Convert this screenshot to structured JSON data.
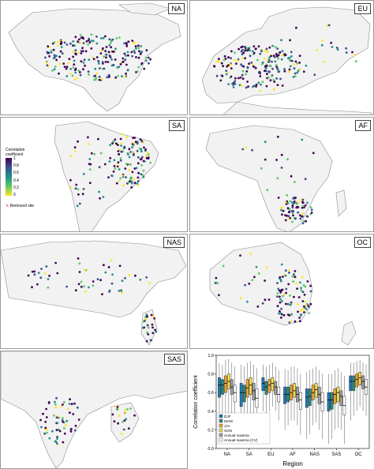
{
  "panels": {
    "na": "NA",
    "eu": "EU",
    "sa": "SA",
    "af": "AF",
    "nas": "NAS",
    "oc": "OC",
    "sas": "SAS"
  },
  "legend": {
    "title_line1": "Correlation",
    "title_line2": "coefficient",
    "ticks": [
      "1",
      "0.8",
      "0.6",
      "0.4",
      "0.2",
      "0"
    ],
    "removed_symbol": "✕",
    "removed_label": "Removed site"
  },
  "colors": {
    "scale": [
      "#440154",
      "#3b528b",
      "#21908c",
      "#5dc863",
      "#fde725"
    ],
    "removed": "#e41a1c",
    "land": "#f2f2f2",
    "border": "#8c8c8c"
  },
  "chart_data": {
    "type": "box",
    "categories": [
      "NA",
      "SA",
      "EU",
      "AF",
      "NAS",
      "SAS",
      "OC"
    ],
    "xlabel": "Region",
    "ylabel": "Correlation coefficient",
    "ylim": [
      0,
      1
    ],
    "yticks": [
      "0.0",
      "0.2",
      "0.4",
      "0.6",
      "0.8",
      "1.0"
    ],
    "legend_position": "bottom-left",
    "series": [
      {
        "name": "DJF",
        "color": "#1f77b4",
        "boxes": [
          [
            0.2,
            0.55,
            0.68,
            0.76,
            0.92
          ],
          [
            0.15,
            0.45,
            0.6,
            0.7,
            0.9
          ],
          [
            0.4,
            0.62,
            0.7,
            0.76,
            0.9
          ],
          [
            0.2,
            0.48,
            0.58,
            0.66,
            0.85
          ],
          [
            0.1,
            0.44,
            0.55,
            0.64,
            0.82
          ],
          [
            0.05,
            0.4,
            0.52,
            0.6,
            0.8
          ],
          [
            0.3,
            0.62,
            0.72,
            0.78,
            0.92
          ]
        ]
      },
      {
        "name": "MAM",
        "color": "#2a8a7b",
        "boxes": [
          [
            0.25,
            0.58,
            0.68,
            0.74,
            0.9
          ],
          [
            0.2,
            0.5,
            0.6,
            0.68,
            0.88
          ],
          [
            0.35,
            0.58,
            0.66,
            0.72,
            0.88
          ],
          [
            0.25,
            0.5,
            0.58,
            0.66,
            0.84
          ],
          [
            0.15,
            0.46,
            0.56,
            0.64,
            0.84
          ],
          [
            0.1,
            0.42,
            0.52,
            0.6,
            0.8
          ],
          [
            0.35,
            0.62,
            0.72,
            0.78,
            0.92
          ]
        ]
      },
      {
        "name": "JJA",
        "color": "#e8a33a",
        "boxes": [
          [
            0.3,
            0.6,
            0.7,
            0.78,
            0.95
          ],
          [
            0.25,
            0.55,
            0.65,
            0.74,
            0.92
          ],
          [
            0.4,
            0.6,
            0.68,
            0.74,
            0.9
          ],
          [
            0.3,
            0.52,
            0.6,
            0.68,
            0.88
          ],
          [
            0.25,
            0.52,
            0.6,
            0.68,
            0.86
          ],
          [
            0.2,
            0.48,
            0.58,
            0.64,
            0.84
          ],
          [
            0.4,
            0.66,
            0.74,
            0.8,
            0.94
          ]
        ]
      },
      {
        "name": "SON",
        "color": "#f6dc4b",
        "boxes": [
          [
            0.35,
            0.64,
            0.72,
            0.8,
            0.96
          ],
          [
            0.3,
            0.58,
            0.68,
            0.76,
            0.94
          ],
          [
            0.45,
            0.62,
            0.7,
            0.76,
            0.92
          ],
          [
            0.3,
            0.55,
            0.62,
            0.7,
            0.88
          ],
          [
            0.28,
            0.55,
            0.63,
            0.7,
            0.88
          ],
          [
            0.22,
            0.5,
            0.6,
            0.66,
            0.86
          ],
          [
            0.45,
            0.68,
            0.76,
            0.82,
            0.95
          ]
        ]
      },
      {
        "name": "Annual maxima",
        "color": "#9e9e9e",
        "boxes": [
          [
            0.3,
            0.58,
            0.66,
            0.74,
            0.92
          ],
          [
            0.25,
            0.52,
            0.62,
            0.7,
            0.9
          ],
          [
            0.4,
            0.58,
            0.66,
            0.72,
            0.88
          ],
          [
            0.25,
            0.5,
            0.58,
            0.66,
            0.86
          ],
          [
            0.2,
            0.48,
            0.58,
            0.66,
            0.84
          ],
          [
            0.2,
            0.46,
            0.56,
            0.62,
            0.82
          ],
          [
            0.4,
            0.64,
            0.72,
            0.78,
            0.92
          ]
        ]
      },
      {
        "name": "Annual maxima (CV)",
        "color": "#ffffff",
        "boxes": [
          [
            0.2,
            0.5,
            0.6,
            0.68,
            0.88
          ],
          [
            0.15,
            0.44,
            0.54,
            0.64,
            0.86
          ],
          [
            0.3,
            0.5,
            0.58,
            0.66,
            0.84
          ],
          [
            0.15,
            0.42,
            0.52,
            0.6,
            0.8
          ],
          [
            0.1,
            0.4,
            0.5,
            0.6,
            0.8
          ],
          [
            0.05,
            0.36,
            0.46,
            0.56,
            0.78
          ],
          [
            0.35,
            0.58,
            0.66,
            0.74,
            0.9
          ]
        ]
      }
    ]
  }
}
